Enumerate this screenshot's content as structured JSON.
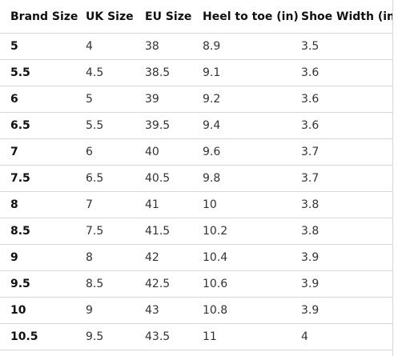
{
  "size_table": {
    "headers": [
      "Brand Size",
      "UK Size",
      "EU Size",
      "Heel to toe (in)",
      "Shoe Width (in)"
    ],
    "rows": [
      [
        "5",
        "4",
        "38",
        "8.9",
        "3.5"
      ],
      [
        "5.5",
        "4.5",
        "38.5",
        "9.1",
        "3.6"
      ],
      [
        "6",
        "5",
        "39",
        "9.2",
        "3.6"
      ],
      [
        "6.5",
        "5.5",
        "39.5",
        "9.4",
        "3.6"
      ],
      [
        "7",
        "6",
        "40",
        "9.6",
        "3.7"
      ],
      [
        "7.5",
        "6.5",
        "40.5",
        "9.8",
        "3.7"
      ],
      [
        "8",
        "7",
        "41",
        "10",
        "3.8"
      ],
      [
        "8.5",
        "7.5",
        "41.5",
        "10.2",
        "3.8"
      ],
      [
        "9",
        "8",
        "42",
        "10.4",
        "3.9"
      ],
      [
        "9.5",
        "8.5",
        "42.5",
        "10.6",
        "3.9"
      ],
      [
        "10",
        "9",
        "43",
        "10.8",
        "3.9"
      ],
      [
        "10.5",
        "9.5",
        "43.5",
        "11",
        "4"
      ]
    ]
  },
  "colors": {
    "border": "#d5d9d9",
    "text": "#0f1111",
    "cell_text": "#333333",
    "background": "#ffffff"
  }
}
